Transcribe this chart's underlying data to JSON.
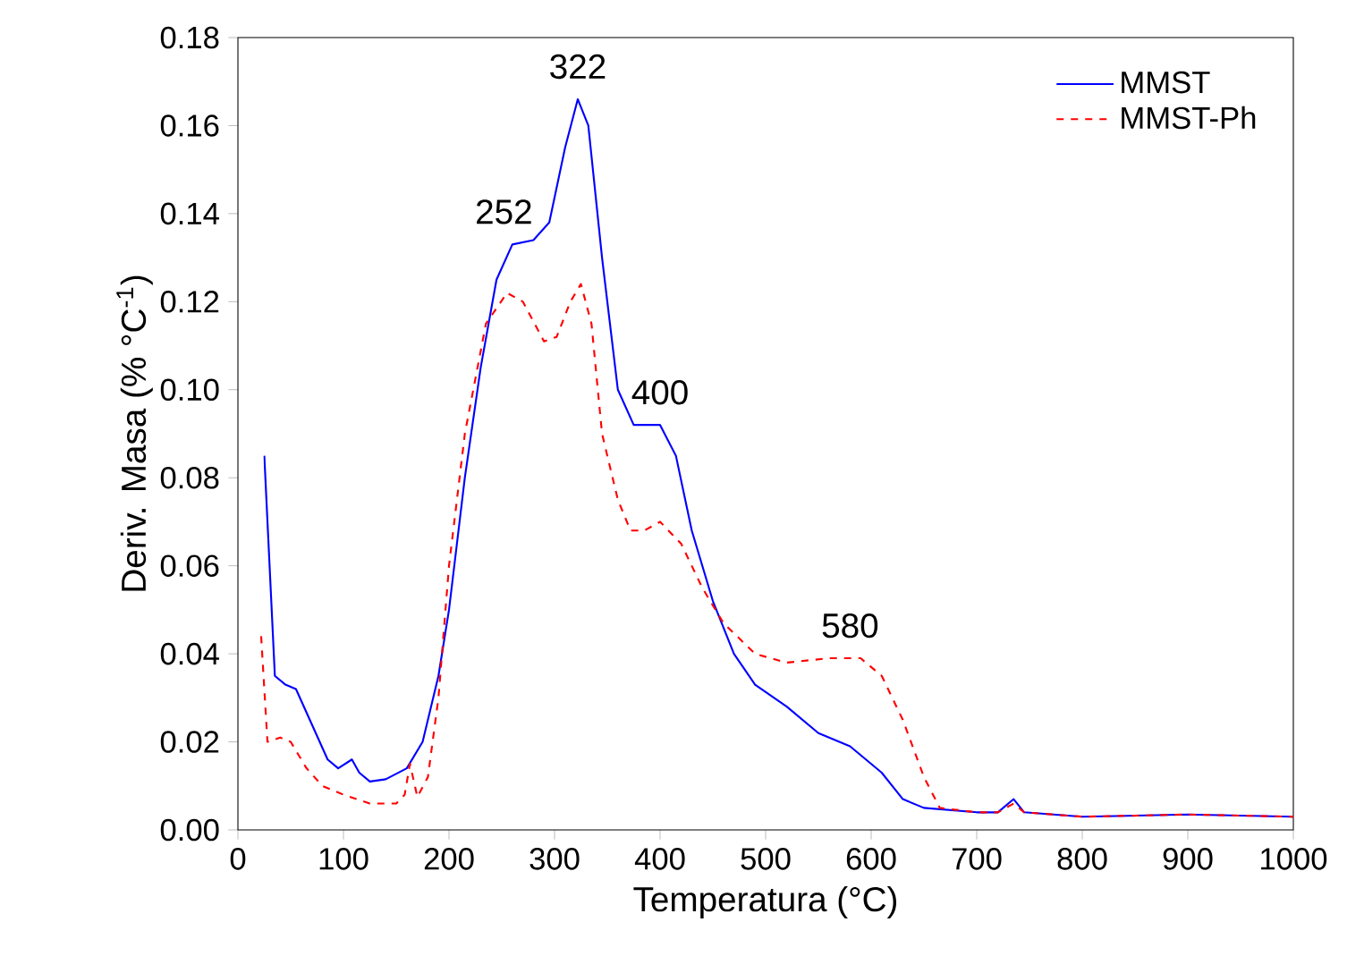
{
  "chart_data": {
    "type": "line",
    "xlabel": "Temperatura (°C)",
    "ylabel": "Deriv. Masa (% °C$^{-1}$)",
    "xlim": [
      0,
      1000
    ],
    "xticks": [
      0,
      100,
      200,
      300,
      400,
      500,
      600,
      700,
      800,
      900,
      1000
    ],
    "ylim": [
      0,
      0.18
    ],
    "yticks": [
      {
        "value": 0,
        "label": "0.00"
      },
      {
        "value": 0.02,
        "label": "0.02"
      },
      {
        "value": 0.04,
        "label": "0.04"
      },
      {
        "value": 0.06,
        "label": "0.06"
      },
      {
        "value": 0.08,
        "label": "0.08"
      },
      {
        "value": 0.1,
        "label": "0.10"
      },
      {
        "value": 0.12,
        "label": "0.12"
      },
      {
        "value": 0.14,
        "label": "0.14"
      },
      {
        "value": 0.16,
        "label": "0.16"
      },
      {
        "value": 0.18,
        "label": "0.18"
      }
    ],
    "grid": false,
    "legend": "top right",
    "series": [
      {
        "name": "MMST",
        "color": "#0000ff",
        "line_style": "solid",
        "x": [
          25,
          30,
          35,
          45,
          55,
          70,
          85,
          95,
          108,
          115,
          125,
          140,
          160,
          175,
          190,
          200,
          215,
          230,
          245,
          260,
          280,
          295,
          310,
          322,
          332,
          345,
          360,
          375,
          400,
          415,
          430,
          450,
          470,
          490,
          520,
          550,
          580,
          610,
          630,
          650,
          700,
          720,
          735,
          745,
          800,
          900,
          1000
        ],
        "values": [
          0.085,
          0.06,
          0.035,
          0.033,
          0.032,
          0.024,
          0.016,
          0.014,
          0.016,
          0.013,
          0.011,
          0.0115,
          0.014,
          0.02,
          0.035,
          0.05,
          0.08,
          0.105,
          0.125,
          0.133,
          0.134,
          0.138,
          0.155,
          0.166,
          0.16,
          0.13,
          0.1,
          0.092,
          0.092,
          0.085,
          0.068,
          0.052,
          0.04,
          0.033,
          0.028,
          0.022,
          0.019,
          0.013,
          0.007,
          0.005,
          0.004,
          0.004,
          0.007,
          0.004,
          0.003,
          0.0035,
          0.003
        ]
      },
      {
        "name": "MMST-Ph",
        "color": "#ff0000",
        "line_style": "dashed",
        "x": [
          22,
          28,
          40,
          50,
          65,
          80,
          100,
          125,
          150,
          158,
          163,
          170,
          180,
          190,
          200,
          215,
          235,
          255,
          270,
          290,
          302,
          315,
          325,
          335,
          345,
          360,
          372,
          385,
          400,
          420,
          440,
          460,
          490,
          520,
          560,
          590,
          610,
          630,
          650,
          665,
          700,
          720,
          735,
          745,
          800,
          900,
          1000
        ],
        "values": [
          0.044,
          0.02,
          0.021,
          0.02,
          0.014,
          0.01,
          0.008,
          0.006,
          0.006,
          0.008,
          0.015,
          0.0075,
          0.012,
          0.03,
          0.06,
          0.09,
          0.115,
          0.122,
          0.12,
          0.111,
          0.112,
          0.12,
          0.124,
          0.115,
          0.09,
          0.075,
          0.068,
          0.068,
          0.07,
          0.065,
          0.055,
          0.047,
          0.04,
          0.038,
          0.039,
          0.039,
          0.035,
          0.025,
          0.012,
          0.005,
          0.004,
          0.004,
          0.006,
          0.004,
          0.003,
          0.0035,
          0.003
        ]
      }
    ],
    "annotations": [
      {
        "text": "252",
        "x": 252,
        "y": 0.133
      },
      {
        "text": "322",
        "x": 322,
        "y": 0.166
      },
      {
        "text": "400",
        "x": 400,
        "y": 0.092
      },
      {
        "text": "580",
        "x": 580,
        "y": 0.039
      }
    ]
  }
}
